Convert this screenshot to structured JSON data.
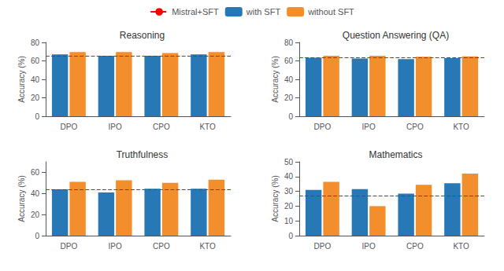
{
  "chart_data": [
    {
      "type": "bar",
      "title": "Reasoning",
      "ylabel": "Accuracy (%)",
      "categories": [
        "DPO",
        "IPO",
        "CPO",
        "KTO"
      ],
      "series": [
        {
          "name": "with SFT",
          "color": "#2878b5",
          "values": [
            67.0,
            65.5,
            65.5,
            67.0
          ]
        },
        {
          "name": "without SFT",
          "color": "#f28e2b",
          "values": [
            69.5,
            69.5,
            68.5,
            69.5
          ]
        }
      ],
      "reference_line": {
        "name": "Mistral+SFT",
        "value": 65.5,
        "color": "red",
        "line_style": "dashed"
      },
      "ylim": [
        0,
        80
      ],
      "yticks": [
        0,
        20,
        40,
        60,
        80
      ],
      "grid": false,
      "legend": "top"
    },
    {
      "type": "bar",
      "title": "Question Answering (QA)",
      "ylabel": "Accuracy (%)",
      "categories": [
        "DPO",
        "IPO",
        "CPO",
        "KTO"
      ],
      "series": [
        {
          "name": "with SFT",
          "color": "#2878b5",
          "values": [
            63.5,
            62.5,
            62.0,
            63.0
          ]
        },
        {
          "name": "without SFT",
          "color": "#f28e2b",
          "values": [
            65.5,
            65.5,
            64.5,
            65.0
          ]
        }
      ],
      "reference_line": {
        "name": "Mistral+SFT",
        "value": 64.0,
        "color": "red",
        "line_style": "dashed"
      },
      "ylim": [
        0,
        80
      ],
      "yticks": [
        0,
        20,
        40,
        60,
        80
      ],
      "grid": false,
      "legend": "top"
    },
    {
      "type": "bar",
      "title": "Truthfulness",
      "ylabel": "Accuracy (%)",
      "categories": [
        "DPO",
        "IPO",
        "CPO",
        "KTO"
      ],
      "series": [
        {
          "name": "with SFT",
          "color": "#2878b5",
          "values": [
            44.0,
            41.0,
            44.5,
            44.5
          ]
        },
        {
          "name": "without SFT",
          "color": "#f28e2b",
          "values": [
            51.0,
            52.5,
            50.0,
            53.0
          ]
        }
      ],
      "reference_line": {
        "name": "Mistral+SFT",
        "value": 44.0,
        "color": "red",
        "line_style": "dashed"
      },
      "ylim": [
        0,
        70
      ],
      "yticks": [
        0,
        20,
        40,
        60
      ],
      "grid": false,
      "legend": "top"
    },
    {
      "type": "bar",
      "title": "Mathematics",
      "ylabel": "Accuracy (%)",
      "categories": [
        "DPO",
        "IPO",
        "CPO",
        "KTO"
      ],
      "series": [
        {
          "name": "with SFT",
          "color": "#2878b5",
          "values": [
            31.0,
            31.5,
            28.5,
            35.5
          ]
        },
        {
          "name": "without SFT",
          "color": "#f28e2b",
          "values": [
            36.5,
            20.0,
            34.5,
            42.0
          ]
        }
      ],
      "reference_line": {
        "name": "Mistral+SFT",
        "value": 27.0,
        "color": "red",
        "line_style": "dashed"
      },
      "ylim": [
        0,
        50
      ],
      "yticks": [
        0,
        10,
        20,
        30,
        40,
        50
      ],
      "grid": false,
      "legend": "top"
    }
  ]
}
